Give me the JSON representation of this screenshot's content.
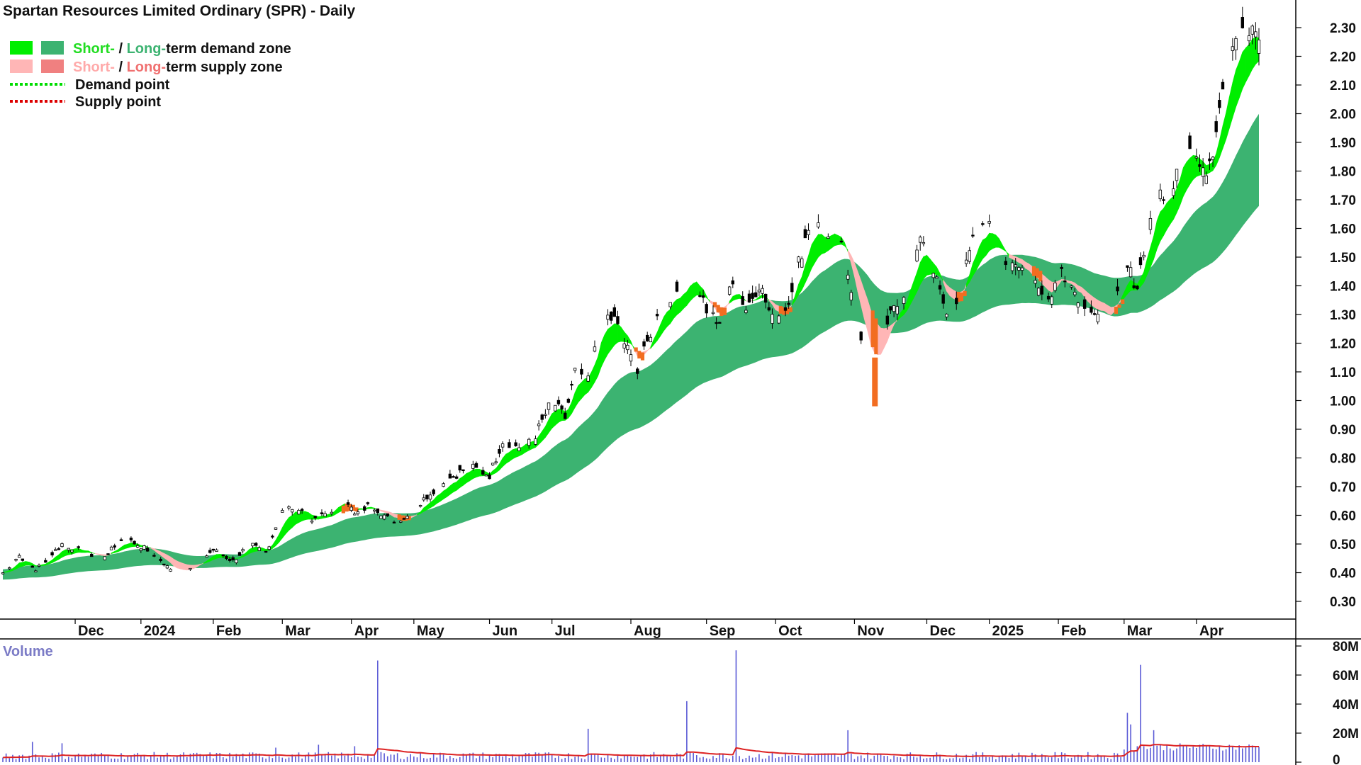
{
  "chart_data": {
    "type": "candlestick",
    "title": "Spartan Resources Limited Ordinary (SPR) - Daily",
    "legend": {
      "entries": [
        {
          "prefix": "Short-",
          "sep": " / ",
          "mid": "Long-",
          "rest": "term demand zone",
          "short_color": "#00ee00",
          "long_color": "#3cb371",
          "short_text_color": "#22dd22",
          "long_text_color": "#3cb371"
        },
        {
          "prefix": "Short-",
          "sep": " / ",
          "mid": "Long-",
          "rest": "term supply zone",
          "short_color": "#ffb6b6",
          "long_color": "#f08080",
          "short_text_color": "#ffaaaa",
          "long_text_color": "#f07070"
        },
        {
          "label": "Demand point",
          "color": "#00dd00"
        },
        {
          "label": "Supply point",
          "color": "#dd0000"
        }
      ]
    },
    "price_axis": {
      "ylim": [
        0.23,
        2.33
      ],
      "ticks": [
        0.3,
        0.4,
        0.5,
        0.6,
        0.7,
        0.8,
        0.9,
        1.0,
        1.1,
        1.2,
        1.3,
        1.4,
        1.5,
        1.6,
        1.7,
        1.8,
        1.9,
        2.0,
        2.1,
        2.2,
        2.3
      ],
      "tick_labels": [
        "0.30",
        "0.40",
        "0.50",
        "0.60",
        "0.70",
        "0.80",
        "0.90",
        "1.00",
        "1.10",
        "1.20",
        "1.30",
        "1.40",
        "1.50",
        "1.60",
        "1.70",
        "1.80",
        "1.90",
        "2.00",
        "2.10",
        "2.20",
        "2.30"
      ]
    },
    "x_axis": {
      "months": [
        {
          "label": "Dec",
          "day": 22
        },
        {
          "label": "2024",
          "day": 42
        },
        {
          "label": "Feb",
          "day": 64
        },
        {
          "label": "Mar",
          "day": 85
        },
        {
          "label": "Apr",
          "day": 106
        },
        {
          "label": "May",
          "day": 125
        },
        {
          "label": "Jun",
          "day": 148
        },
        {
          "label": "Jul",
          "day": 167
        },
        {
          "label": "Aug",
          "day": 191
        },
        {
          "label": "Sep",
          "day": 214
        },
        {
          "label": "Oct",
          "day": 235
        },
        {
          "label": "Nov",
          "day": 259
        },
        {
          "label": "Dec",
          "day": 281
        },
        {
          "label": "2025",
          "day": 300
        },
        {
          "label": "Feb",
          "day": 321
        },
        {
          "label": "Mar",
          "day": 341
        },
        {
          "label": "Apr",
          "day": 363
        }
      ],
      "num_days": 383
    },
    "price_anchors": [
      [
        0,
        0.4
      ],
      [
        5,
        0.46
      ],
      [
        10,
        0.41
      ],
      [
        18,
        0.5
      ],
      [
        25,
        0.47
      ],
      [
        30,
        0.45
      ],
      [
        37,
        0.52
      ],
      [
        44,
        0.48
      ],
      [
        52,
        0.4
      ],
      [
        58,
        0.42
      ],
      [
        64,
        0.48
      ],
      [
        70,
        0.44
      ],
      [
        75,
        0.5
      ],
      [
        80,
        0.47
      ],
      [
        85,
        0.62
      ],
      [
        90,
        0.63
      ],
      [
        95,
        0.58
      ],
      [
        100,
        0.62
      ],
      [
        104,
        0.67
      ],
      [
        107,
        0.6
      ],
      [
        112,
        0.64
      ],
      [
        118,
        0.58
      ],
      [
        124,
        0.6
      ],
      [
        130,
        0.68
      ],
      [
        136,
        0.73
      ],
      [
        142,
        0.77
      ],
      [
        148,
        0.74
      ],
      [
        152,
        0.86
      ],
      [
        157,
        0.84
      ],
      [
        162,
        0.88
      ],
      [
        167,
        1.0
      ],
      [
        171,
        0.94
      ],
      [
        174,
        1.1
      ],
      [
        178,
        1.08
      ],
      [
        182,
        1.3
      ],
      [
        186,
        1.28
      ],
      [
        189,
        1.2
      ],
      [
        193,
        1.1
      ],
      [
        196,
        1.2
      ],
      [
        200,
        1.35
      ],
      [
        205,
        1.38
      ],
      [
        210,
        1.45
      ],
      [
        214,
        1.3
      ],
      [
        218,
        1.28
      ],
      [
        222,
        1.43
      ],
      [
        226,
        1.32
      ],
      [
        230,
        1.41
      ],
      [
        234,
        1.28
      ],
      [
        238,
        1.32
      ],
      [
        242,
        1.48
      ],
      [
        246,
        1.65
      ],
      [
        250,
        1.56
      ],
      [
        254,
        1.57
      ],
      [
        258,
        1.4
      ],
      [
        261,
        1.2
      ],
      [
        264,
        1.08
      ],
      [
        267,
        1.18
      ],
      [
        270,
        1.3
      ],
      [
        275,
        1.4
      ],
      [
        279,
        1.58
      ],
      [
        283,
        1.45
      ],
      [
        287,
        1.3
      ],
      [
        291,
        1.38
      ],
      [
        295,
        1.55
      ],
      [
        298,
        1.62
      ],
      [
        302,
        1.58
      ],
      [
        306,
        1.45
      ],
      [
        310,
        1.46
      ],
      [
        314,
        1.42
      ],
      [
        318,
        1.35
      ],
      [
        322,
        1.46
      ],
      [
        326,
        1.38
      ],
      [
        330,
        1.33
      ],
      [
        334,
        1.28
      ],
      [
        338,
        1.32
      ],
      [
        342,
        1.46
      ],
      [
        345,
        1.4
      ],
      [
        348,
        1.6
      ],
      [
        351,
        1.73
      ],
      [
        355,
        1.72
      ],
      [
        359,
        1.93
      ],
      [
        362,
        1.88
      ],
      [
        365,
        1.78
      ],
      [
        368,
        1.88
      ],
      [
        370,
        2.05
      ],
      [
        372,
        2.15
      ],
      [
        374,
        2.27
      ]
    ],
    "volume_axis": {
      "ylim": [
        0,
        80
      ],
      "ticks": [
        0,
        20,
        40,
        60,
        80
      ],
      "tick_labels": [
        "0",
        "20M",
        "40M",
        "60M",
        "80M"
      ],
      "label": "Volume"
    },
    "volume_spikes": [
      [
        9,
        14
      ],
      [
        18,
        13
      ],
      [
        83,
        10
      ],
      [
        96,
        12
      ],
      [
        107,
        11
      ],
      [
        114,
        70
      ],
      [
        178,
        23
      ],
      [
        208,
        42
      ],
      [
        223,
        77
      ],
      [
        257,
        22
      ],
      [
        342,
        34
      ],
      [
        343,
        26
      ],
      [
        346,
        67
      ],
      [
        350,
        22
      ]
    ],
    "colors": {
      "short_demand": "#00ee00",
      "long_demand": "#3cb371",
      "short_supply": "#ffb6b6",
      "supply_point_fill": "#f26d21",
      "candle": "#000000",
      "volume_bar": "#5a5ad6",
      "volume_ma": "#dd2222"
    }
  }
}
